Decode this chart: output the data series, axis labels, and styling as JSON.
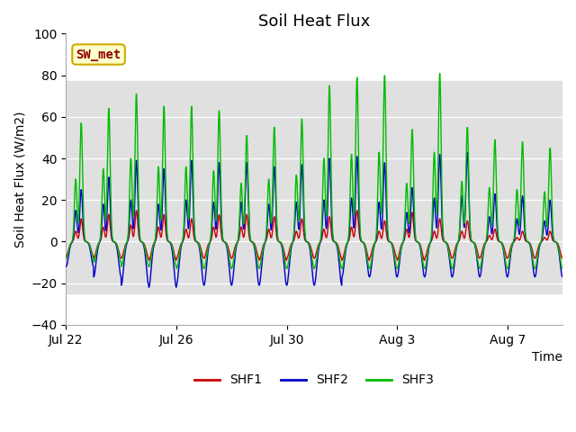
{
  "title": "Soil Heat Flux",
  "ylabel": "Soil Heat Flux (W/m2)",
  "xlabel": "Time",
  "ylim": [
    -40,
    100
  ],
  "yticks": [
    -40,
    -20,
    0,
    20,
    40,
    60,
    80,
    100
  ],
  "xlim_days": [
    0,
    18
  ],
  "x_tick_labels": [
    "Jul 22",
    "Jul 26",
    "Jul 30",
    "Aug 3",
    "Aug 7"
  ],
  "x_tick_positions": [
    0,
    4,
    8,
    12,
    16
  ],
  "shf1_color": "#cc0000",
  "shf2_color": "#0000cc",
  "shf3_color": "#00bb00",
  "shf1_label": "SHF1",
  "shf2_label": "SHF2",
  "shf3_label": "SHF3",
  "sw_met_label": "SW_met",
  "sw_met_text_color": "#8b0000",
  "sw_met_bg_color": "#ffffcc",
  "sw_met_border_color": "#ccaa00",
  "bg_band_ymin": -25,
  "bg_band_ymax": 77,
  "bg_color": "#e0e0e0",
  "plot_bg_color": "#ffffff",
  "title_fontsize": 13,
  "axis_label_fontsize": 10,
  "tick_fontsize": 10,
  "legend_fontsize": 10,
  "shf1_peaks1": [
    11,
    13,
    15,
    13,
    11,
    13,
    13,
    12,
    11,
    12,
    15,
    10,
    14,
    11,
    10,
    6,
    5,
    5
  ],
  "shf1_peaks2": [
    5,
    7,
    8,
    7,
    6,
    7,
    7,
    6,
    5,
    6,
    7,
    5,
    6,
    5,
    5,
    3,
    2,
    2
  ],
  "shf1_troughs": [
    -7,
    -8,
    -8,
    -9,
    -8,
    -8,
    -8,
    -9,
    -8,
    -8,
    -9,
    -8,
    -9,
    -8,
    -8,
    -8,
    -8,
    -8
  ],
  "shf2_peaks1": [
    25,
    31,
    39,
    35,
    39,
    38,
    38,
    36,
    37,
    40,
    41,
    38,
    26,
    42,
    43,
    23,
    22,
    20
  ],
  "shf2_peaks2": [
    15,
    18,
    20,
    18,
    20,
    19,
    19,
    18,
    19,
    20,
    21,
    19,
    14,
    21,
    22,
    12,
    11,
    10
  ],
  "shf2_troughs": [
    -12,
    -17,
    -21,
    -22,
    -21,
    -21,
    -21,
    -21,
    -21,
    -21,
    -17,
    -17,
    -17,
    -17,
    -17,
    -17,
    -17,
    -17
  ],
  "shf3_peaks1": [
    57,
    64,
    71,
    65,
    65,
    63,
    51,
    55,
    59,
    75,
    79,
    80,
    54,
    81,
    55,
    49,
    48,
    45
  ],
  "shf3_peaks2": [
    30,
    35,
    40,
    36,
    36,
    34,
    28,
    30,
    32,
    40,
    42,
    43,
    28,
    43,
    29,
    26,
    25,
    24
  ],
  "shf3_troughs": [
    -8,
    -10,
    -12,
    -12,
    -13,
    -13,
    -13,
    -13,
    -13,
    -13,
    -13,
    -13,
    -13,
    -13,
    -13,
    -13,
    -13,
    -13
  ]
}
